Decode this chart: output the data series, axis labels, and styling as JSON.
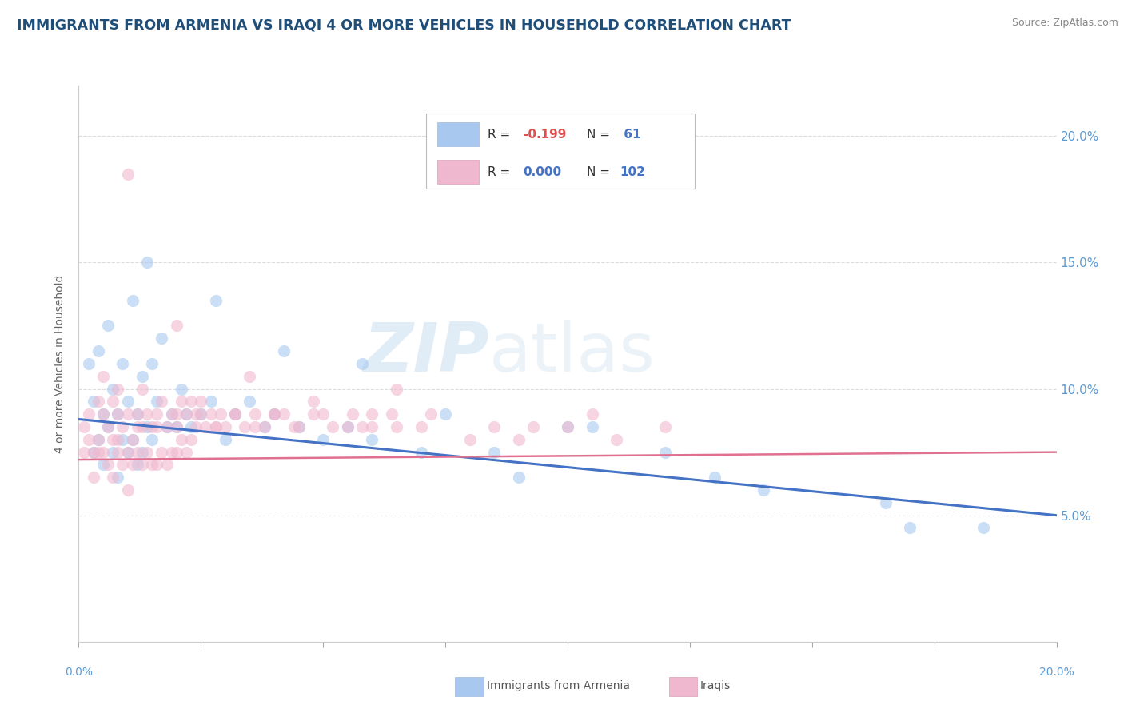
{
  "title": "IMMIGRANTS FROM ARMENIA VS IRAQI 4 OR MORE VEHICLES IN HOUSEHOLD CORRELATION CHART",
  "source": "Source: ZipAtlas.com",
  "ylabel": "4 or more Vehicles in Household",
  "ytick_labels": [
    "5.0%",
    "10.0%",
    "15.0%",
    "20.0%"
  ],
  "ytick_values": [
    5.0,
    10.0,
    15.0,
    20.0
  ],
  "xlim": [
    0.0,
    20.0
  ],
  "ylim": [
    0.0,
    22.0
  ],
  "legend_r1": "R = -0.199",
  "legend_n1": "N =  61",
  "legend_r2": "R = 0.000",
  "legend_n2": "N = 102",
  "legend_color1": "#a8c8f0",
  "legend_color2": "#f0b8ce",
  "bottom_legend": [
    {
      "label": "Immigrants from Armenia",
      "color": "#a8c8f0"
    },
    {
      "label": "Iraqis",
      "color": "#f0b8ce"
    }
  ],
  "watermark_zip": "ZIP",
  "watermark_atlas": "atlas",
  "title_color": "#1f4e79",
  "title_fontsize": 12.5,
  "source_color": "#888888",
  "axis_color": "#cccccc",
  "grid_color": "#dddddd",
  "ylabel_color": "#666666",
  "right_tick_color": "#5b9bd5",
  "armenia_line_color": "#4472c4",
  "iraqi_line_color": "#e07090",
  "armenia_line": {
    "x0": 0.0,
    "y0": 8.8,
    "x1": 20.0,
    "y1": 5.0
  },
  "iraqi_line": {
    "x0": 0.0,
    "y0": 7.2,
    "x1": 20.0,
    "y1": 7.5
  },
  "armenia_x": [
    0.2,
    0.3,
    0.3,
    0.4,
    0.4,
    0.5,
    0.5,
    0.6,
    0.6,
    0.7,
    0.7,
    0.8,
    0.8,
    0.9,
    0.9,
    1.0,
    1.0,
    1.1,
    1.1,
    1.2,
    1.2,
    1.3,
    1.3,
    1.4,
    1.5,
    1.5,
    1.6,
    1.7,
    1.8,
    1.9,
    2.0,
    2.1,
    2.2,
    2.3,
    2.5,
    2.7,
    3.0,
    3.2,
    3.5,
    3.8,
    4.0,
    4.5,
    5.0,
    5.5,
    6.0,
    7.0,
    8.5,
    9.0,
    10.5,
    12.0,
    14.0,
    16.5,
    18.5,
    1.4,
    2.8,
    4.2,
    5.8,
    7.5,
    10.0,
    13.0,
    17.0
  ],
  "armenia_y": [
    11.0,
    7.5,
    9.5,
    8.0,
    11.5,
    7.0,
    9.0,
    8.5,
    12.5,
    7.5,
    10.0,
    6.5,
    9.0,
    8.0,
    11.0,
    7.5,
    9.5,
    8.0,
    13.5,
    7.0,
    9.0,
    7.5,
    10.5,
    8.5,
    8.0,
    11.0,
    9.5,
    12.0,
    8.5,
    9.0,
    8.5,
    10.0,
    9.0,
    8.5,
    9.0,
    9.5,
    8.0,
    9.0,
    9.5,
    8.5,
    9.0,
    8.5,
    8.0,
    8.5,
    8.0,
    7.5,
    7.5,
    6.5,
    8.5,
    7.5,
    6.0,
    5.5,
    4.5,
    15.0,
    13.5,
    11.5,
    11.0,
    9.0,
    8.5,
    6.5,
    4.5
  ],
  "iraqi_x": [
    0.1,
    0.1,
    0.2,
    0.2,
    0.3,
    0.3,
    0.4,
    0.4,
    0.5,
    0.5,
    0.5,
    0.6,
    0.6,
    0.7,
    0.7,
    0.7,
    0.8,
    0.8,
    0.8,
    0.9,
    0.9,
    1.0,
    1.0,
    1.0,
    1.1,
    1.1,
    1.2,
    1.2,
    1.3,
    1.3,
    1.3,
    1.4,
    1.4,
    1.5,
    1.5,
    1.6,
    1.6,
    1.7,
    1.7,
    1.8,
    1.8,
    1.9,
    1.9,
    2.0,
    2.0,
    2.1,
    2.1,
    2.2,
    2.2,
    2.3,
    2.3,
    2.4,
    2.5,
    2.6,
    2.7,
    2.8,
    2.9,
    3.0,
    3.2,
    3.4,
    3.6,
    3.8,
    4.0,
    4.5,
    5.0,
    5.5,
    6.0,
    6.5,
    7.0,
    8.0,
    9.0,
    10.0,
    11.0,
    1.0,
    2.0,
    3.5,
    4.8,
    6.5,
    8.5,
    10.5,
    12.0,
    2.5,
    4.2,
    5.8,
    7.2,
    9.3,
    0.4,
    0.8,
    1.2,
    1.6,
    2.0,
    2.4,
    2.8,
    3.2,
    3.6,
    4.0,
    4.4,
    4.8,
    5.2,
    5.6,
    6.0,
    6.4
  ],
  "iraqi_y": [
    7.5,
    8.5,
    8.0,
    9.0,
    6.5,
    7.5,
    8.0,
    9.5,
    7.5,
    9.0,
    10.5,
    7.0,
    8.5,
    6.5,
    8.0,
    9.5,
    7.5,
    9.0,
    10.0,
    7.0,
    8.5,
    6.0,
    7.5,
    9.0,
    7.0,
    8.0,
    7.5,
    9.0,
    7.0,
    8.5,
    10.0,
    7.5,
    9.0,
    7.0,
    8.5,
    7.0,
    8.5,
    7.5,
    9.5,
    7.0,
    8.5,
    7.5,
    9.0,
    7.5,
    9.0,
    8.0,
    9.5,
    7.5,
    9.0,
    8.0,
    9.5,
    8.5,
    9.0,
    8.5,
    9.0,
    8.5,
    9.0,
    8.5,
    9.0,
    8.5,
    9.0,
    8.5,
    9.0,
    8.5,
    9.0,
    8.5,
    9.0,
    8.5,
    8.5,
    8.0,
    8.0,
    8.5,
    8.0,
    18.5,
    12.5,
    10.5,
    9.5,
    10.0,
    8.5,
    9.0,
    8.5,
    9.5,
    9.0,
    8.5,
    9.0,
    8.5,
    7.5,
    8.0,
    8.5,
    9.0,
    8.5,
    9.0,
    8.5,
    9.0,
    8.5,
    9.0,
    8.5,
    9.0,
    8.5,
    9.0,
    8.5,
    9.0
  ],
  "scatter_size": 120,
  "scatter_alpha": 0.6,
  "background_color": "#ffffff"
}
